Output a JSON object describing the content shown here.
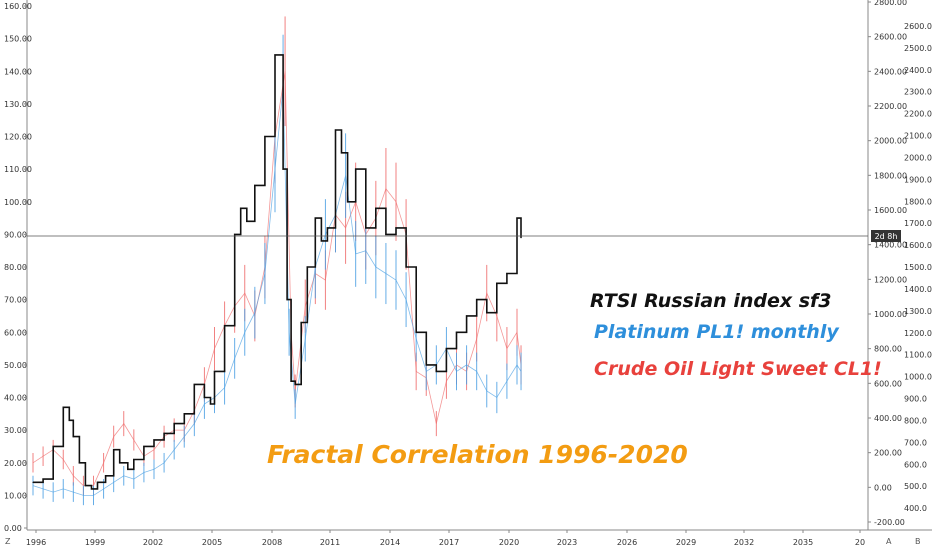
{
  "chart_data": {
    "type": "line",
    "annotations": {
      "title": "Fractal Correlation 1996-2020",
      "rtsi": "RTSI  Russian index sf3",
      "platinum": "Platinum PL1! monthly",
      "crude": "Crude Oil Light Sweet CL1!",
      "price_label": "2d 8h"
    },
    "colors": {
      "rtsi": "#111111",
      "platinum": "#4a9fe3",
      "crude": "#ef6b6b",
      "title": "#f39c12",
      "platinum_text": "#2e8fdb",
      "crude_text": "#e8413c"
    },
    "x_axis": {
      "ticks": [
        "1996",
        "1999",
        "2002",
        "2005",
        "2008",
        "2011",
        "2014",
        "2017",
        "2020",
        "2023",
        "2026",
        "2029",
        "2032",
        "2035",
        "20"
      ],
      "range": [
        1996,
        2037
      ]
    },
    "left_axis": {
      "ticks": [
        "0.00",
        "10.00",
        "20.00",
        "30.00",
        "40.00",
        "50.00",
        "60.00",
        "70.00",
        "80.00",
        "90.00",
        "100.00",
        "110.00",
        "120.00",
        "130.00",
        "140.00",
        "150.00",
        "160.00"
      ],
      "range": [
        0,
        160
      ]
    },
    "right_axis_outer": {
      "ticks": [
        "-200.00",
        "0.00",
        "200.00",
        "400.00",
        "600.00",
        "800.00",
        "1000.00",
        "1200.00",
        "1400.00",
        "1600.00",
        "1800.00",
        "2000.00",
        "2200.00",
        "2400.00",
        "2600.00",
        "2800.00"
      ],
      "range": [
        -200,
        2800
      ]
    },
    "right_axis_inner": {
      "ticks": [
        "400.0",
        "500.0",
        "600.0",
        "700.0",
        "800.0",
        "900.0",
        "1000.0",
        "1100.0",
        "1200.0",
        "1300.0",
        "1400.0",
        "1500.0",
        "1600.0",
        "1700.0",
        "1800.0",
        "1900.0",
        "2000.0",
        "2100.0",
        "2200.0",
        "2300.0",
        "2400.0",
        "2500.0",
        "2600.0"
      ],
      "range": [
        300,
        2700
      ]
    },
    "horizontal_line": 89.5,
    "corner_labels": [
      "Z",
      "A",
      "B"
    ],
    "series": [
      {
        "key": "rtsi",
        "x": [
          1996.0,
          1996.5,
          1997.0,
          1997.5,
          1997.8,
          1998.0,
          1998.3,
          1998.6,
          1998.9,
          1999.2,
          1999.6,
          2000.0,
          2000.3,
          2000.7,
          2001.0,
          2001.5,
          2002.0,
          2002.5,
          2003.0,
          2003.5,
          2004.0,
          2004.5,
          2004.8,
          2005.0,
          2005.5,
          2006.0,
          2006.3,
          2006.6,
          2007.0,
          2007.5,
          2008.0,
          2008.4,
          2008.6,
          2008.8,
          2009.0,
          2009.3,
          2009.6,
          2010.0,
          2010.3,
          2010.6,
          2011.0,
          2011.3,
          2011.6,
          2012.0,
          2012.5,
          2013.0,
          2013.5,
          2014.0,
          2014.5,
          2015.0,
          2015.5,
          2016.0,
          2016.5,
          2017.0,
          2017.5,
          2018.0,
          2018.5,
          2019.0,
          2019.5,
          2020.0,
          2020.2
        ],
        "values": [
          14,
          15,
          25,
          37,
          33,
          28,
          20,
          13,
          12,
          14,
          16,
          24,
          20,
          18,
          21,
          25,
          27,
          29,
          32,
          35,
          44,
          40,
          38,
          48,
          62,
          90,
          98,
          94,
          105,
          120,
          145,
          110,
          70,
          45,
          44,
          63,
          80,
          95,
          88,
          92,
          122,
          115,
          100,
          110,
          92,
          98,
          90,
          92,
          80,
          60,
          50,
          48,
          55,
          60,
          65,
          70,
          66,
          75,
          78,
          95,
          89
        ]
      },
      {
        "key": "platinum",
        "x": [
          1996.0,
          1996.5,
          1997.0,
          1997.5,
          1998.0,
          1998.5,
          1999.0,
          1999.5,
          2000.0,
          2000.5,
          2001.0,
          2001.5,
          2002.0,
          2002.5,
          2003.0,
          2003.5,
          2004.0,
          2004.5,
          2005.0,
          2005.5,
          2006.0,
          2006.5,
          2007.0,
          2007.5,
          2008.0,
          2008.4,
          2008.7,
          2009.0,
          2009.5,
          2010.0,
          2010.5,
          2011.0,
          2011.5,
          2012.0,
          2012.5,
          2013.0,
          2013.5,
          2014.0,
          2014.5,
          2015.0,
          2015.5,
          2016.0,
          2016.5,
          2017.0,
          2017.5,
          2018.0,
          2018.5,
          2019.0,
          2019.5,
          2020.0,
          2020.2
        ],
        "values": [
          13,
          12,
          11,
          12,
          11,
          10,
          10,
          12,
          14,
          16,
          15,
          17,
          18,
          20,
          24,
          28,
          32,
          38,
          40,
          43,
          52,
          60,
          66,
          78,
          110,
          135,
          60,
          38,
          58,
          80,
          90,
          96,
          108,
          84,
          85,
          80,
          78,
          76,
          70,
          58,
          48,
          50,
          55,
          48,
          50,
          48,
          42,
          40,
          45,
          50,
          48
        ]
      },
      {
        "key": "crude",
        "x": [
          1996.0,
          1996.5,
          1997.0,
          1997.5,
          1998.0,
          1998.5,
          1999.0,
          1999.5,
          2000.0,
          2000.5,
          2001.0,
          2001.5,
          2002.0,
          2002.5,
          2003.0,
          2003.5,
          2004.0,
          2004.5,
          2005.0,
          2005.5,
          2006.0,
          2006.5,
          2007.0,
          2007.5,
          2008.0,
          2008.5,
          2008.8,
          2009.0,
          2009.5,
          2010.0,
          2010.5,
          2011.0,
          2011.5,
          2012.0,
          2012.5,
          2013.0,
          2013.5,
          2014.0,
          2014.5,
          2015.0,
          2015.5,
          2016.0,
          2016.5,
          2017.0,
          2017.5,
          2018.0,
          2018.5,
          2019.0,
          2019.5,
          2020.0,
          2020.2
        ],
        "values": [
          20,
          22,
          24,
          21,
          16,
          13,
          13,
          20,
          28,
          32,
          27,
          22,
          24,
          28,
          30,
          30,
          36,
          44,
          55,
          62,
          68,
          72,
          65,
          80,
          120,
          140,
          60,
          42,
          68,
          78,
          76,
          96,
          92,
          100,
          90,
          95,
          104,
          100,
          90,
          48,
          46,
          32,
          45,
          50,
          48,
          58,
          72,
          65,
          55,
          60,
          50
        ]
      }
    ]
  }
}
